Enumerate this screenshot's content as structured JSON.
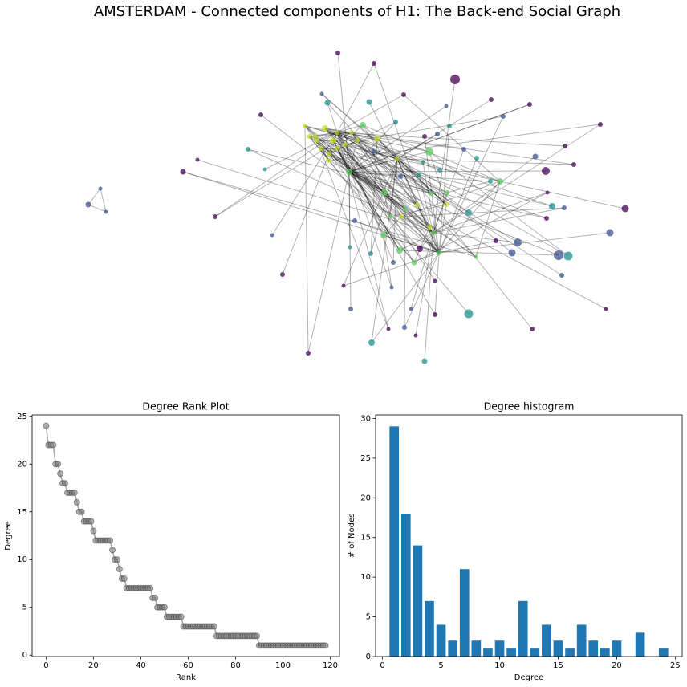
{
  "chart_data": [
    {
      "type": "network",
      "title": "AMSTERDAM - Connected components of H1: The Back-end Social Graph"
    },
    {
      "type": "line",
      "title": "Degree Rank Plot",
      "xlabel": "Rank",
      "ylabel": "Degree",
      "color": "#808080",
      "x": [
        0,
        1,
        2,
        3,
        4,
        5,
        6,
        7,
        8,
        9,
        10,
        11,
        12,
        13,
        14,
        15,
        16,
        17,
        18,
        19,
        20,
        21,
        22,
        23,
        24,
        25,
        26,
        27,
        28,
        29,
        30,
        31,
        32,
        33,
        34,
        35,
        36,
        37,
        38,
        39,
        40,
        41,
        42,
        43,
        44,
        45,
        46,
        47,
        48,
        49,
        50,
        51,
        52,
        53,
        54,
        55,
        56,
        57,
        58,
        59,
        60,
        61,
        62,
        63,
        64,
        65,
        66,
        67,
        68,
        69,
        70,
        71,
        72,
        73,
        74,
        75,
        76,
        77,
        78,
        79,
        80,
        81,
        82,
        83,
        84,
        85,
        86,
        87,
        88,
        89,
        90,
        91,
        92,
        93,
        94,
        95,
        96,
        97,
        98,
        99,
        100,
        101,
        102,
        103,
        104,
        105,
        106,
        107,
        108,
        109,
        110,
        111,
        112,
        113,
        114,
        115,
        116,
        117,
        118
      ],
      "values": [
        24,
        22,
        22,
        22,
        20,
        20,
        19,
        18,
        18,
        17,
        17,
        17,
        17,
        16,
        15,
        15,
        14,
        14,
        14,
        14,
        13,
        12,
        12,
        12,
        12,
        12,
        12,
        12,
        11,
        10,
        10,
        9,
        8,
        8,
        7,
        7,
        7,
        7,
        7,
        7,
        7,
        7,
        7,
        7,
        7,
        6,
        6,
        5,
        5,
        5,
        5,
        4,
        4,
        4,
        4,
        4,
        4,
        4,
        3,
        3,
        3,
        3,
        3,
        3,
        3,
        3,
        3,
        3,
        3,
        3,
        3,
        3,
        2,
        2,
        2,
        2,
        2,
        2,
        2,
        2,
        2,
        2,
        2,
        2,
        2,
        2,
        2,
        2,
        2,
        2,
        1,
        1,
        1,
        1,
        1,
        1,
        1,
        1,
        1,
        1,
        1,
        1,
        1,
        1,
        1,
        1,
        1,
        1,
        1,
        1,
        1,
        1,
        1,
        1,
        1,
        1,
        1,
        1,
        1
      ],
      "xlim": [
        -5.9,
        123.9
      ],
      "ylim": [
        -0.15,
        25.15
      ],
      "xticks": [
        0,
        20,
        40,
        60,
        80,
        100,
        120
      ],
      "yticks": [
        0,
        5,
        10,
        15,
        20,
        25
      ]
    },
    {
      "type": "bar",
      "title": "Degree histogram",
      "xlabel": "Degree",
      "ylabel": "# of Nodes",
      "color": "#1f77b4",
      "x": [
        1,
        2,
        3,
        4,
        5,
        6,
        7,
        8,
        9,
        10,
        11,
        12,
        13,
        14,
        15,
        16,
        17,
        18,
        19,
        20,
        22,
        24
      ],
      "values": [
        29,
        18,
        14,
        7,
        4,
        2,
        11,
        2,
        1,
        2,
        1,
        7,
        1,
        4,
        2,
        1,
        4,
        2,
        1,
        2,
        3,
        1
      ],
      "xlim": [
        -0.59,
        25.59
      ],
      "ylim": [
        0,
        30.45
      ],
      "xticks": [
        0,
        5,
        10,
        15,
        20,
        25
      ],
      "yticks": [
        0,
        5,
        10,
        15,
        20,
        25,
        30
      ]
    }
  ]
}
